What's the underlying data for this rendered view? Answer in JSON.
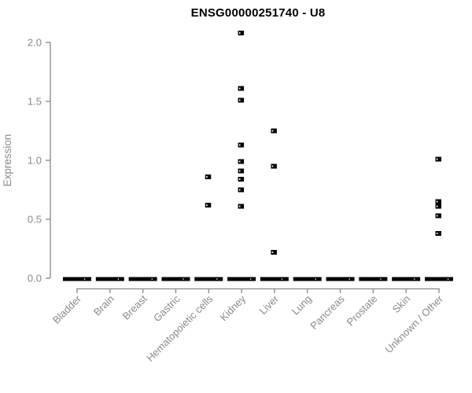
{
  "chart_data": {
    "type": "scatter",
    "title": "ENSG00000251740 - U8",
    "xlabel": "",
    "ylabel": "Expression",
    "ylim": [
      0.0,
      2.0
    ],
    "yticks": [
      0.0,
      0.5,
      1.0,
      1.5,
      2.0
    ],
    "ytick_labels": [
      "0.0",
      "0.5",
      "1.0",
      "1.5",
      "2.0"
    ],
    "grid": false,
    "legend_position": "none",
    "categories": [
      "Bladder",
      "Brain",
      "Breast",
      "Gastric",
      "Hematopoietic cells",
      "Kidney",
      "Liver",
      "Lung",
      "Pancreas",
      "Prostate",
      "Skin",
      "Unknown / Other"
    ],
    "zero_cluster_value": 0.0,
    "zero_cluster_all_categories": true,
    "series": [
      {
        "category": "Bladder",
        "values": []
      },
      {
        "category": "Brain",
        "values": []
      },
      {
        "category": "Breast",
        "values": []
      },
      {
        "category": "Gastric",
        "values": []
      },
      {
        "category": "Hematopoietic cells",
        "values": [
          0.86,
          0.62
        ]
      },
      {
        "category": "Kidney",
        "values": [
          2.08,
          1.61,
          1.51,
          1.13,
          0.99,
          0.91,
          0.84,
          0.75,
          0.61
        ]
      },
      {
        "category": "Liver",
        "values": [
          1.25,
          0.95,
          0.22
        ]
      },
      {
        "category": "Lung",
        "values": []
      },
      {
        "category": "Pancreas",
        "values": []
      },
      {
        "category": "Prostate",
        "values": []
      },
      {
        "category": "Skin",
        "values": []
      },
      {
        "category": "Unknown / Other",
        "values": [
          1.01,
          0.65,
          0.61,
          0.53,
          0.38
        ]
      }
    ],
    "colors": {
      "point": "#000000",
      "axis": "#888888",
      "tick_label": "#8a8a8a",
      "title": "#000000",
      "background": "#ffffff"
    }
  }
}
